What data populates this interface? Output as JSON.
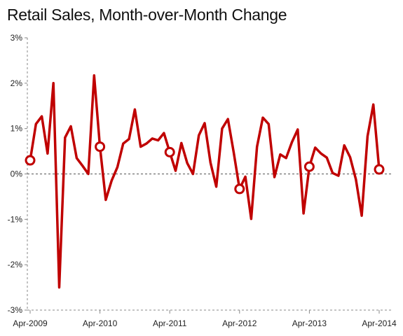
{
  "chart_data": {
    "type": "line",
    "title": "Retail Sales, Month-over-Month  Change",
    "xlabel": "",
    "ylabel": "",
    "ylim": [
      -3,
      3
    ],
    "y_ticks": [
      "3%",
      "2%",
      "1%",
      "0%",
      "-1%",
      "-2%",
      "-3%"
    ],
    "y_tick_values": [
      3,
      2,
      1,
      0,
      -1,
      -2,
      -3
    ],
    "x_tick_labels": [
      "Apr-2009",
      "Apr-2010",
      "Apr-2011",
      "Apr-2012",
      "Apr-2013",
      "Apr-2014"
    ],
    "x_tick_index": [
      0,
      12,
      24,
      36,
      48,
      60
    ],
    "grid": false,
    "zero_line": "dashed",
    "series": [
      {
        "color": "#c00000",
        "marker_color": "#c00000",
        "values": [
          0.3,
          1.1,
          1.27,
          0.45,
          2.0,
          -2.5,
          0.8,
          1.05,
          0.35,
          0.18,
          0.0,
          2.17,
          0.6,
          -0.57,
          -0.15,
          0.15,
          0.67,
          0.77,
          1.42,
          0.6,
          0.67,
          0.78,
          0.74,
          0.9,
          0.48,
          0.07,
          0.68,
          0.24,
          0.0,
          0.85,
          1.12,
          0.25,
          -0.28,
          1.0,
          1.21,
          0.47,
          -0.33,
          -0.06,
          -0.99,
          0.6,
          1.24,
          1.1,
          -0.07,
          0.43,
          0.35,
          0.7,
          0.98,
          -0.87,
          0.16,
          0.58,
          0.45,
          0.36,
          0.02,
          -0.04,
          0.63,
          0.37,
          -0.12,
          -0.92,
          0.83,
          1.53,
          0.1
        ],
        "markers_at_index": [
          0,
          12,
          24,
          36,
          48,
          60
        ]
      }
    ]
  }
}
